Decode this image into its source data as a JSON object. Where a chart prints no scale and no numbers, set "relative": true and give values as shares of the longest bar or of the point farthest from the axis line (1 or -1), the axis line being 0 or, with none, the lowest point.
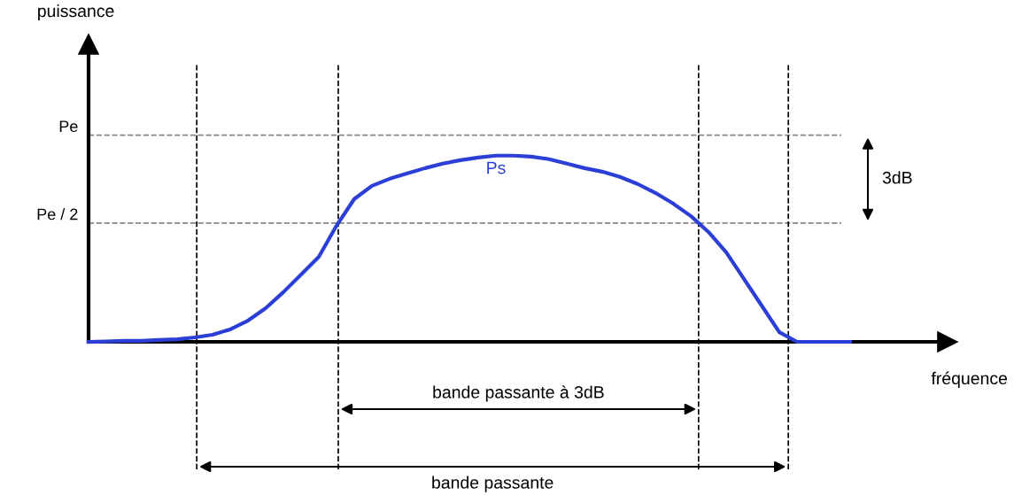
{
  "chart_data": {
    "type": "line",
    "relative": true,
    "categories": [
      null,
      null,
      null,
      null,
      null,
      null,
      null,
      null,
      null,
      null,
      null,
      null,
      null,
      null,
      null,
      null,
      null,
      null,
      null,
      null,
      null,
      null,
      null,
      null,
      null,
      null,
      null,
      null,
      null,
      null,
      null,
      null,
      null,
      null,
      null,
      null,
      null,
      null,
      null,
      null,
      null,
      null,
      null,
      null
    ],
    "series": [
      {
        "color": "#2b3fd6",
        "values": [
          0,
          0.002,
          0.005,
          0.005,
          0.01,
          0.014,
          0.024,
          0.038,
          0.067,
          0.114,
          0.181,
          0.267,
          0.362,
          0.457,
          0.624,
          0.767,
          0.838,
          0.876,
          0.905,
          0.933,
          0.957,
          0.976,
          0.99,
          1,
          1,
          0.995,
          0.981,
          0.957,
          0.933,
          0.914,
          0.886,
          0.848,
          0.8,
          0.743,
          0.676,
          0.59,
          0.481,
          0.338,
          0.195,
          0.052,
          0,
          0,
          0,
          0
        ]
      }
    ],
    "ref_lines": [
      {
        "axis": "y",
        "value": 1.11,
        "label": "Pe",
        "color": "#888888",
        "line_style": "dashed"
      },
      {
        "axis": "y",
        "value": 0.638,
        "label": "Pe / 2",
        "color": "#888888",
        "line_style": "dashed"
      }
    ],
    "annotations": [
      "Ps",
      "3dB",
      "bande passante à 3dB",
      "bande passante",
      "puissance",
      "fréquence"
    ],
    "legend": false,
    "marker": "none",
    "line_style": "solid"
  }
}
